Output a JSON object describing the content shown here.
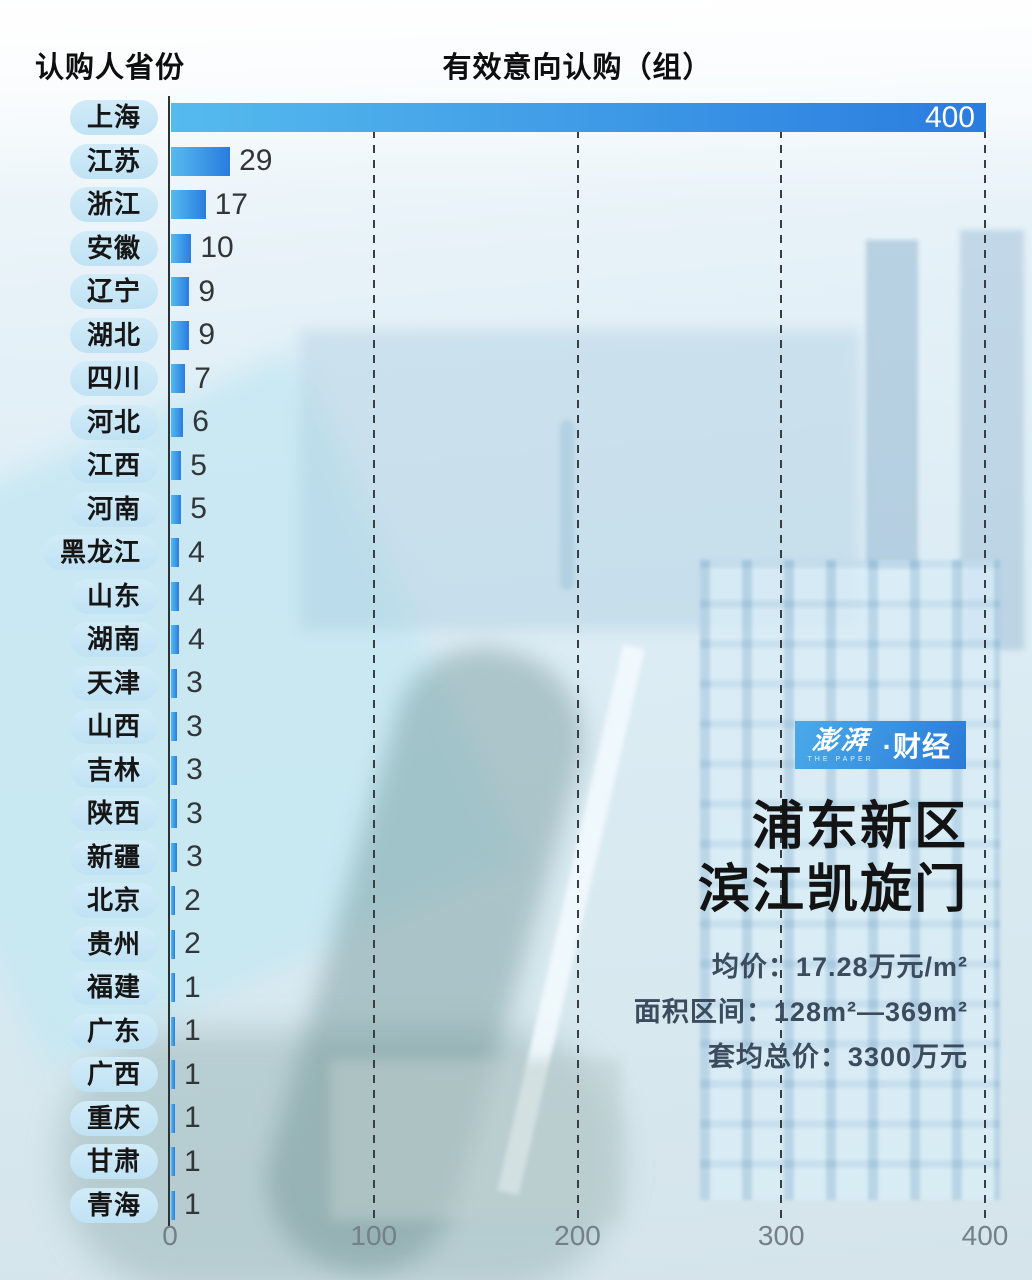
{
  "header": {
    "left": "认购人省份",
    "right": "有效意向认购（组）"
  },
  "chart_data": {
    "type": "bar",
    "orientation": "horizontal",
    "categories": [
      "上海",
      "江苏",
      "浙江",
      "安徽",
      "辽宁",
      "湖北",
      "四川",
      "河北",
      "江西",
      "河南",
      "黑龙江",
      "山东",
      "湖南",
      "天津",
      "山西",
      "吉林",
      "陕西",
      "新疆",
      "北京",
      "贵州",
      "福建",
      "广东",
      "广西",
      "重庆",
      "甘肃",
      "青海"
    ],
    "values": [
      400,
      29,
      17,
      10,
      9,
      9,
      7,
      6,
      5,
      5,
      4,
      4,
      4,
      3,
      3,
      3,
      3,
      3,
      2,
      2,
      1,
      1,
      1,
      1,
      1,
      1
    ],
    "xlabel": "有效意向认购（组）",
    "ylabel": "认购人省份",
    "xlim": [
      0,
      400
    ],
    "xticks": [
      0,
      100,
      200,
      300,
      400
    ],
    "grid": "vertical-dashed",
    "max_value_label_inside": true
  },
  "panel": {
    "logo": {
      "brand": "澎湃",
      "sub": "THE PAPER",
      "suffix": "·财经"
    },
    "title_line1": "浦东新区",
    "title_line2": "滨江凯旋门",
    "stats": [
      "均价：17.28万元/m²",
      "面积区间：128m²—369m²",
      "套均总价：3300万元"
    ]
  },
  "colors": {
    "bar_gradient_start": "#55bbee",
    "bar_gradient_end": "#2a7cdf",
    "pill_background": "#c8e6f6",
    "logo_gradient_start": "#4aabe9",
    "logo_gradient_end": "#2b7ad8",
    "stat_text": "#3c4b5d",
    "tick_text": "#747f88",
    "background_tint": "#ddedf5"
  }
}
